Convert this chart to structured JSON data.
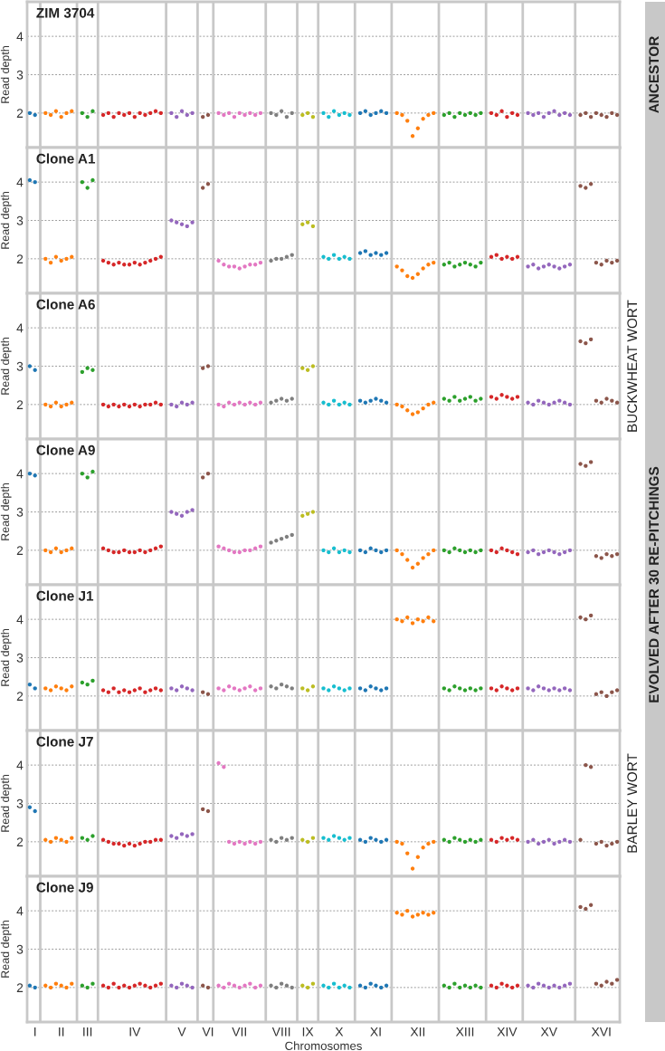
{
  "chart_data": [
    {
      "type": "scatter",
      "title": "ZIM 3704",
      "ylabel": "Read depth",
      "marker": "circle",
      "grid": true,
      "tick_labels": "y",
      "annotations": [
        "ANCESTOR"
      ],
      "ylim": [
        1.1,
        4.9
      ],
      "yticks": [
        2,
        3,
        4
      ],
      "categories": [
        null,
        null,
        null,
        null,
        null,
        null,
        null,
        null,
        null,
        null,
        null,
        null,
        null,
        null,
        null,
        null,
        null,
        null,
        null,
        null,
        null,
        null,
        null,
        null,
        null,
        null,
        null,
        null,
        null,
        null,
        null,
        null,
        null,
        null,
        null,
        null,
        null,
        null,
        null,
        null,
        null,
        null,
        null,
        null,
        null,
        null,
        null,
        null,
        null,
        null,
        null,
        null,
        null,
        null,
        null,
        null,
        null,
        null,
        null,
        null,
        null,
        null,
        null,
        null,
        null,
        null,
        null,
        null,
        null,
        null,
        null,
        null,
        null,
        null,
        null,
        null,
        null,
        null,
        null,
        null,
        null,
        null,
        null,
        null,
        null,
        null,
        null,
        null,
        null,
        null,
        null,
        null,
        null,
        null,
        null,
        null,
        null,
        null,
        null,
        null,
        null,
        null,
        null,
        null,
        null,
        null,
        null,
        null,
        null,
        null,
        null,
        null,
        null
      ],
      "colors": [
        "#1f77b4",
        "#1f77b4",
        null,
        "#ff7f0e",
        "#ff7f0e",
        "#ff7f0e",
        "#ff7f0e",
        "#ff7f0e",
        "#ff7f0e",
        null,
        "#2ca02c",
        "#2ca02c",
        "#2ca02c",
        null,
        "#d62728",
        "#d62728",
        "#d62728",
        "#d62728",
        "#d62728",
        "#d62728",
        "#d62728",
        "#d62728",
        "#d62728",
        "#d62728",
        "#d62728",
        "#d62728",
        null,
        "#9467bd",
        "#9467bd",
        "#9467bd",
        "#9467bd",
        "#9467bd",
        null,
        "#8c564b",
        "#8c564b",
        null,
        "#e377c2",
        "#e377c2",
        "#e377c2",
        "#e377c2",
        "#e377c2",
        "#e377c2",
        "#e377c2",
        "#e377c2",
        "#e377c2",
        null,
        "#7f7f7f",
        "#7f7f7f",
        "#7f7f7f",
        "#7f7f7f",
        "#7f7f7f",
        null,
        "#bcbd22",
        "#bcbd22",
        "#bcbd22",
        null,
        "#17becf",
        "#17becf",
        "#17becf",
        "#17becf",
        "#17becf",
        "#17becf",
        null,
        "#1f77b4",
        "#1f77b4",
        "#1f77b4",
        "#1f77b4",
        "#1f77b4",
        "#1f77b4",
        null,
        "#ff7f0e",
        "#ff7f0e",
        "#ff7f0e",
        "#ff7f0e",
        "#ff7f0e",
        "#ff7f0e",
        "#ff7f0e",
        "#ff7f0e",
        null,
        "#2ca02c",
        "#2ca02c",
        "#2ca02c",
        "#2ca02c",
        "#2ca02c",
        "#2ca02c",
        "#2ca02c",
        "#2ca02c",
        null,
        "#d62728",
        "#d62728",
        "#d62728",
        "#d62728",
        "#d62728",
        "#d62728",
        null,
        "#9467bd",
        "#9467bd",
        "#9467bd",
        "#9467bd",
        "#9467bd",
        "#9467bd",
        "#9467bd",
        "#9467bd",
        "#9467bd",
        null,
        "#8c564b",
        "#8c564b",
        "#8c564b",
        "#8c564b",
        "#8c564b",
        "#8c564b",
        "#8c564b",
        "#8c564b"
      ],
      "values": [
        2.0,
        1.95,
        null,
        2.0,
        1.95,
        2.05,
        1.9,
        2.0,
        2.05,
        null,
        2.0,
        1.9,
        2.05,
        null,
        1.95,
        2.0,
        1.9,
        2.0,
        1.95,
        2.0,
        1.9,
        2.0,
        1.95,
        2.0,
        2.05,
        2.0,
        null,
        2.0,
        1.9,
        2.05,
        1.95,
        2.0,
        null,
        1.9,
        1.95,
        null,
        2.0,
        1.95,
        2.0,
        1.9,
        2.0,
        1.95,
        2.0,
        1.95,
        2.0,
        null,
        2.0,
        1.95,
        2.05,
        1.9,
        2.0,
        null,
        1.95,
        2.0,
        1.9,
        null,
        2.0,
        1.9,
        2.05,
        1.95,
        2.0,
        1.95,
        null,
        2.0,
        2.05,
        1.95,
        2.0,
        2.05,
        2.0,
        null,
        2.0,
        1.95,
        1.8,
        1.4,
        1.6,
        1.85,
        1.95,
        2.0,
        null,
        1.95,
        2.0,
        1.9,
        2.0,
        1.95,
        2.0,
        1.95,
        2.0,
        null,
        2.0,
        1.95,
        2.05,
        1.9,
        2.0,
        1.95,
        null,
        2.0,
        1.95,
        2.0,
        1.9,
        2.0,
        2.05,
        1.95,
        2.0,
        1.95,
        null,
        1.95,
        2.0,
        1.9,
        2.0,
        1.95,
        1.9,
        2.0,
        1.95
      ]
    },
    {
      "type": "scatter",
      "title": "Clone A1",
      "ylabel": "Read depth",
      "marker": "circle",
      "grid": true,
      "tick_labels": "y",
      "ylim": [
        1.1,
        4.9
      ],
      "yticks": [
        2,
        3,
        4
      ],
      "categories": [
        null,
        null,
        null,
        null,
        null,
        null,
        null,
        null,
        null,
        null,
        null,
        null,
        null,
        null,
        null,
        null,
        null,
        null,
        null,
        null,
        null,
        null,
        null,
        null,
        null,
        null,
        null,
        null,
        null,
        null,
        null,
        null,
        null,
        null,
        null,
        null,
        null,
        null,
        null,
        null,
        null,
        null,
        null,
        null,
        null,
        null,
        null,
        null,
        null,
        null,
        null,
        null,
        null,
        null,
        null,
        null,
        null,
        null,
        null,
        null,
        null,
        null,
        null,
        null,
        null,
        null,
        null,
        null,
        null,
        null,
        null,
        null,
        null,
        null,
        null,
        null,
        null,
        null,
        null,
        null,
        null,
        null,
        null,
        null,
        null,
        null,
        null,
        null,
        null,
        null,
        null,
        null,
        null,
        null,
        null,
        null,
        null,
        null,
        null,
        null,
        null,
        null,
        null,
        null,
        null,
        null,
        null,
        null,
        null,
        null,
        null,
        null,
        null
      ],
      "colors": [
        "#1f77b4",
        "#1f77b4",
        null,
        "#ff7f0e",
        "#ff7f0e",
        "#ff7f0e",
        "#ff7f0e",
        "#ff7f0e",
        "#ff7f0e",
        null,
        "#2ca02c",
        "#2ca02c",
        "#2ca02c",
        null,
        "#d62728",
        "#d62728",
        "#d62728",
        "#d62728",
        "#d62728",
        "#d62728",
        "#d62728",
        "#d62728",
        "#d62728",
        "#d62728",
        "#d62728",
        "#d62728",
        null,
        "#9467bd",
        "#9467bd",
        "#9467bd",
        "#9467bd",
        "#9467bd",
        null,
        "#8c564b",
        "#8c564b",
        null,
        "#e377c2",
        "#e377c2",
        "#e377c2",
        "#e377c2",
        "#e377c2",
        "#e377c2",
        "#e377c2",
        "#e377c2",
        "#e377c2",
        null,
        "#7f7f7f",
        "#7f7f7f",
        "#7f7f7f",
        "#7f7f7f",
        "#7f7f7f",
        null,
        "#bcbd22",
        "#bcbd22",
        "#bcbd22",
        null,
        "#17becf",
        "#17becf",
        "#17becf",
        "#17becf",
        "#17becf",
        "#17becf",
        null,
        "#1f77b4",
        "#1f77b4",
        "#1f77b4",
        "#1f77b4",
        "#1f77b4",
        "#1f77b4",
        null,
        "#ff7f0e",
        "#ff7f0e",
        "#ff7f0e",
        "#ff7f0e",
        "#ff7f0e",
        "#ff7f0e",
        "#ff7f0e",
        "#ff7f0e",
        null,
        "#2ca02c",
        "#2ca02c",
        "#2ca02c",
        "#2ca02c",
        "#2ca02c",
        "#2ca02c",
        "#2ca02c",
        "#2ca02c",
        null,
        "#d62728",
        "#d62728",
        "#d62728",
        "#d62728",
        "#d62728",
        "#d62728",
        null,
        "#9467bd",
        "#9467bd",
        "#9467bd",
        "#9467bd",
        "#9467bd",
        "#9467bd",
        "#9467bd",
        "#9467bd",
        "#9467bd",
        null,
        "#8c564b",
        "#8c564b",
        "#8c564b",
        "#8c564b",
        "#8c564b",
        "#8c564b",
        "#8c564b",
        "#8c564b"
      ],
      "values": [
        4.05,
        4.0,
        null,
        2.0,
        1.9,
        2.05,
        1.95,
        2.0,
        2.05,
        null,
        4.0,
        3.85,
        4.05,
        null,
        1.95,
        1.9,
        1.85,
        1.9,
        1.85,
        1.85,
        1.9,
        1.85,
        1.9,
        1.95,
        2.0,
        2.05,
        null,
        3.0,
        2.95,
        2.9,
        2.85,
        2.95,
        null,
        3.85,
        3.95,
        null,
        1.95,
        1.85,
        1.8,
        1.8,
        1.75,
        1.8,
        1.85,
        1.85,
        1.9,
        null,
        1.95,
        2.0,
        2.0,
        2.05,
        2.1,
        null,
        2.9,
        2.95,
        2.85,
        null,
        2.05,
        2.0,
        2.1,
        2.0,
        2.05,
        2.0,
        null,
        2.15,
        2.2,
        2.1,
        2.15,
        2.1,
        2.15,
        null,
        1.8,
        1.7,
        1.55,
        1.5,
        1.6,
        1.75,
        1.85,
        1.9,
        null,
        1.85,
        1.9,
        1.8,
        1.85,
        1.9,
        1.85,
        1.8,
        1.9,
        null,
        2.05,
        2.1,
        2.0,
        2.05,
        2.0,
        2.05,
        null,
        1.8,
        1.85,
        1.75,
        1.8,
        1.85,
        1.8,
        1.75,
        1.8,
        1.85,
        null,
        3.9,
        3.85,
        3.95,
        1.9,
        1.85,
        1.95,
        1.9,
        1.95
      ]
    },
    {
      "type": "scatter",
      "title": "Clone A6",
      "ylabel": "Read depth",
      "marker": "circle",
      "grid": true,
      "tick_labels": "y",
      "annotations": [
        "BUCKWHEAT WORT"
      ],
      "ylim": [
        1.1,
        4.9
      ],
      "yticks": [
        2,
        3,
        4
      ],
      "categories": [
        null,
        null,
        null,
        null,
        null,
        null,
        null,
        null,
        null,
        null,
        null,
        null,
        null,
        null,
        null,
        null,
        null,
        null,
        null,
        null,
        null,
        null,
        null,
        null,
        null,
        null,
        null,
        null,
        null,
        null,
        null,
        null,
        null,
        null,
        null,
        null,
        null,
        null,
        null,
        null,
        null,
        null,
        null,
        null,
        null,
        null,
        null,
        null,
        null,
        null,
        null,
        null,
        null,
        null,
        null,
        null,
        null,
        null,
        null,
        null,
        null,
        null,
        null,
        null,
        null,
        null,
        null,
        null,
        null,
        null,
        null,
        null,
        null,
        null,
        null,
        null,
        null,
        null,
        null,
        null,
        null,
        null,
        null,
        null,
        null,
        null,
        null,
        null,
        null,
        null,
        null,
        null,
        null,
        null,
        null,
        null,
        null,
        null,
        null,
        null,
        null,
        null,
        null,
        null,
        null,
        null,
        null,
        null,
        null,
        null,
        null,
        null,
        null
      ],
      "colors": [
        "#1f77b4",
        "#1f77b4",
        null,
        "#ff7f0e",
        "#ff7f0e",
        "#ff7f0e",
        "#ff7f0e",
        "#ff7f0e",
        "#ff7f0e",
        null,
        "#2ca02c",
        "#2ca02c",
        "#2ca02c",
        null,
        "#d62728",
        "#d62728",
        "#d62728",
        "#d62728",
        "#d62728",
        "#d62728",
        "#d62728",
        "#d62728",
        "#d62728",
        "#d62728",
        "#d62728",
        "#d62728",
        null,
        "#9467bd",
        "#9467bd",
        "#9467bd",
        "#9467bd",
        "#9467bd",
        null,
        "#8c564b",
        "#8c564b",
        null,
        "#e377c2",
        "#e377c2",
        "#e377c2",
        "#e377c2",
        "#e377c2",
        "#e377c2",
        "#e377c2",
        "#e377c2",
        "#e377c2",
        null,
        "#7f7f7f",
        "#7f7f7f",
        "#7f7f7f",
        "#7f7f7f",
        "#7f7f7f",
        null,
        "#bcbd22",
        "#bcbd22",
        "#bcbd22",
        null,
        "#17becf",
        "#17becf",
        "#17becf",
        "#17becf",
        "#17becf",
        "#17becf",
        null,
        "#1f77b4",
        "#1f77b4",
        "#1f77b4",
        "#1f77b4",
        "#1f77b4",
        "#1f77b4",
        null,
        "#ff7f0e",
        "#ff7f0e",
        "#ff7f0e",
        "#ff7f0e",
        "#ff7f0e",
        "#ff7f0e",
        "#ff7f0e",
        "#ff7f0e",
        null,
        "#2ca02c",
        "#2ca02c",
        "#2ca02c",
        "#2ca02c",
        "#2ca02c",
        "#2ca02c",
        "#2ca02c",
        "#2ca02c",
        null,
        "#d62728",
        "#d62728",
        "#d62728",
        "#d62728",
        "#d62728",
        "#d62728",
        null,
        "#9467bd",
        "#9467bd",
        "#9467bd",
        "#9467bd",
        "#9467bd",
        "#9467bd",
        "#9467bd",
        "#9467bd",
        "#9467bd",
        null,
        "#8c564b",
        "#8c564b",
        "#8c564b",
        "#8c564b",
        "#8c564b",
        "#8c564b",
        "#8c564b",
        "#8c564b"
      ],
      "values": [
        3.0,
        2.9,
        null,
        2.0,
        1.95,
        2.05,
        1.95,
        2.0,
        2.05,
        null,
        2.85,
        2.95,
        2.9,
        null,
        2.0,
        1.95,
        2.0,
        1.95,
        2.0,
        1.95,
        2.0,
        1.95,
        2.0,
        2.0,
        2.05,
        2.0,
        null,
        2.0,
        1.95,
        2.05,
        2.0,
        2.05,
        null,
        2.95,
        3.0,
        null,
        2.0,
        1.95,
        2.05,
        2.0,
        2.05,
        2.0,
        2.05,
        2.0,
        2.05,
        null,
        2.05,
        2.1,
        2.15,
        2.1,
        2.15,
        null,
        2.95,
        2.9,
        3.0,
        null,
        2.05,
        2.0,
        2.1,
        2.0,
        2.05,
        2.0,
        null,
        2.1,
        2.05,
        2.1,
        2.15,
        2.1,
        2.05,
        null,
        2.0,
        1.95,
        1.85,
        1.75,
        1.8,
        1.9,
        2.0,
        2.05,
        null,
        2.15,
        2.1,
        2.2,
        2.1,
        2.15,
        2.2,
        2.1,
        2.15,
        null,
        2.2,
        2.15,
        2.25,
        2.2,
        2.15,
        2.2,
        null,
        2.05,
        2.0,
        2.1,
        2.05,
        2.0,
        2.05,
        2.1,
        2.05,
        2.0,
        null,
        3.65,
        3.6,
        3.7,
        2.1,
        2.05,
        2.15,
        2.1,
        2.05
      ]
    },
    {
      "type": "scatter",
      "title": "Clone A9",
      "ylabel": "Read depth",
      "marker": "circle",
      "grid": true,
      "tick_labels": "y",
      "annotations": [
        "EVOLVED AFTER 30 RE-PITCHINGS"
      ],
      "ylim": [
        1.1,
        4.9
      ],
      "yticks": [
        2,
        3,
        4
      ],
      "categories": [
        null,
        null,
        null,
        null,
        null,
        null,
        null,
        null,
        null,
        null,
        null,
        null,
        null,
        null,
        null,
        null,
        null,
        null,
        null,
        null,
        null,
        null,
        null,
        null,
        null,
        null,
        null,
        null,
        null,
        null,
        null,
        null,
        null,
        null,
        null,
        null,
        null,
        null,
        null,
        null,
        null,
        null,
        null,
        null,
        null,
        null,
        null,
        null,
        null,
        null,
        null,
        null,
        null,
        null,
        null,
        null,
        null,
        null,
        null,
        null,
        null,
        null,
        null,
        null,
        null,
        null,
        null,
        null,
        null,
        null,
        null,
        null,
        null,
        null,
        null,
        null,
        null,
        null,
        null,
        null,
        null,
        null,
        null,
        null,
        null,
        null,
        null,
        null,
        null,
        null,
        null,
        null,
        null,
        null,
        null,
        null,
        null,
        null,
        null,
        null,
        null,
        null,
        null,
        null,
        null,
        null,
        null,
        null,
        null,
        null,
        null,
        null,
        null
      ],
      "colors": [
        "#1f77b4",
        "#1f77b4",
        null,
        "#ff7f0e",
        "#ff7f0e",
        "#ff7f0e",
        "#ff7f0e",
        "#ff7f0e",
        "#ff7f0e",
        null,
        "#2ca02c",
        "#2ca02c",
        "#2ca02c",
        null,
        "#d62728",
        "#d62728",
        "#d62728",
        "#d62728",
        "#d62728",
        "#d62728",
        "#d62728",
        "#d62728",
        "#d62728",
        "#d62728",
        "#d62728",
        "#d62728",
        null,
        "#9467bd",
        "#9467bd",
        "#9467bd",
        "#9467bd",
        "#9467bd",
        null,
        "#8c564b",
        "#8c564b",
        null,
        "#e377c2",
        "#e377c2",
        "#e377c2",
        "#e377c2",
        "#e377c2",
        "#e377c2",
        "#e377c2",
        "#e377c2",
        "#e377c2",
        null,
        "#7f7f7f",
        "#7f7f7f",
        "#7f7f7f",
        "#7f7f7f",
        "#7f7f7f",
        null,
        "#bcbd22",
        "#bcbd22",
        "#bcbd22",
        null,
        "#17becf",
        "#17becf",
        "#17becf",
        "#17becf",
        "#17becf",
        "#17becf",
        null,
        "#1f77b4",
        "#1f77b4",
        "#1f77b4",
        "#1f77b4",
        "#1f77b4",
        "#1f77b4",
        null,
        "#ff7f0e",
        "#ff7f0e",
        "#ff7f0e",
        "#ff7f0e",
        "#ff7f0e",
        "#ff7f0e",
        "#ff7f0e",
        "#ff7f0e",
        null,
        "#2ca02c",
        "#2ca02c",
        "#2ca02c",
        "#2ca02c",
        "#2ca02c",
        "#2ca02c",
        "#2ca02c",
        "#2ca02c",
        null,
        "#d62728",
        "#d62728",
        "#d62728",
        "#d62728",
        "#d62728",
        "#d62728",
        null,
        "#9467bd",
        "#9467bd",
        "#9467bd",
        "#9467bd",
        "#9467bd",
        "#9467bd",
        "#9467bd",
        "#9467bd",
        "#9467bd",
        null,
        "#8c564b",
        "#8c564b",
        "#8c564b",
        "#8c564b",
        "#8c564b",
        "#8c564b",
        "#8c564b",
        "#8c564b"
      ],
      "values": [
        4.0,
        3.95,
        null,
        2.0,
        1.95,
        2.05,
        1.95,
        2.0,
        2.05,
        null,
        4.0,
        3.9,
        4.05,
        null,
        2.05,
        2.0,
        1.95,
        1.95,
        2.0,
        1.95,
        1.95,
        2.0,
        1.95,
        2.0,
        2.05,
        2.1,
        null,
        3.0,
        2.95,
        2.9,
        3.0,
        3.05,
        null,
        3.9,
        4.0,
        null,
        2.1,
        2.05,
        2.0,
        1.95,
        1.95,
        2.0,
        2.0,
        2.05,
        2.1,
        null,
        2.2,
        2.25,
        2.3,
        2.35,
        2.4,
        null,
        2.9,
        2.95,
        3.0,
        null,
        2.0,
        1.95,
        2.05,
        1.95,
        2.0,
        1.95,
        null,
        2.0,
        1.95,
        2.05,
        2.0,
        1.95,
        2.0,
        null,
        2.0,
        1.9,
        1.75,
        1.55,
        1.65,
        1.8,
        1.9,
        2.0,
        null,
        2.0,
        1.95,
        2.05,
        2.0,
        1.95,
        2.0,
        1.95,
        2.0,
        null,
        2.0,
        1.95,
        2.05,
        2.0,
        1.95,
        1.9,
        null,
        1.95,
        2.0,
        1.9,
        1.95,
        2.0,
        1.95,
        1.9,
        1.95,
        2.0,
        null,
        4.25,
        4.2,
        4.3,
        1.85,
        1.8,
        1.9,
        1.85,
        1.9
      ]
    },
    {
      "type": "scatter",
      "title": "Clone J1",
      "ylabel": "Read depth",
      "marker": "circle",
      "grid": true,
      "tick_labels": "y",
      "ylim": [
        1.1,
        4.9
      ],
      "yticks": [
        2,
        3,
        4
      ],
      "categories": [
        null,
        null,
        null,
        null,
        null,
        null,
        null,
        null,
        null,
        null,
        null,
        null,
        null,
        null,
        null,
        null,
        null,
        null,
        null,
        null,
        null,
        null,
        null,
        null,
        null,
        null,
        null,
        null,
        null,
        null,
        null,
        null,
        null,
        null,
        null,
        null,
        null,
        null,
        null,
        null,
        null,
        null,
        null,
        null,
        null,
        null,
        null,
        null,
        null,
        null,
        null,
        null,
        null,
        null,
        null,
        null,
        null,
        null,
        null,
        null,
        null,
        null,
        null,
        null,
        null,
        null,
        null,
        null,
        null,
        null,
        null,
        null,
        null,
        null,
        null,
        null,
        null,
        null,
        null,
        null,
        null,
        null,
        null,
        null,
        null,
        null,
        null,
        null,
        null,
        null,
        null,
        null,
        null,
        null,
        null,
        null,
        null,
        null,
        null,
        null,
        null,
        null,
        null,
        null,
        null,
        null,
        null,
        null,
        null,
        null,
        null,
        null,
        null
      ],
      "colors": [
        "#1f77b4",
        "#1f77b4",
        null,
        "#ff7f0e",
        "#ff7f0e",
        "#ff7f0e",
        "#ff7f0e",
        "#ff7f0e",
        "#ff7f0e",
        null,
        "#2ca02c",
        "#2ca02c",
        "#2ca02c",
        null,
        "#d62728",
        "#d62728",
        "#d62728",
        "#d62728",
        "#d62728",
        "#d62728",
        "#d62728",
        "#d62728",
        "#d62728",
        "#d62728",
        "#d62728",
        "#d62728",
        null,
        "#9467bd",
        "#9467bd",
        "#9467bd",
        "#9467bd",
        "#9467bd",
        null,
        "#8c564b",
        "#8c564b",
        null,
        "#e377c2",
        "#e377c2",
        "#e377c2",
        "#e377c2",
        "#e377c2",
        "#e377c2",
        "#e377c2",
        "#e377c2",
        "#e377c2",
        null,
        "#7f7f7f",
        "#7f7f7f",
        "#7f7f7f",
        "#7f7f7f",
        "#7f7f7f",
        null,
        "#bcbd22",
        "#bcbd22",
        "#bcbd22",
        null,
        "#17becf",
        "#17becf",
        "#17becf",
        "#17becf",
        "#17becf",
        "#17becf",
        null,
        "#1f77b4",
        "#1f77b4",
        "#1f77b4",
        "#1f77b4",
        "#1f77b4",
        "#1f77b4",
        null,
        "#ff7f0e",
        "#ff7f0e",
        "#ff7f0e",
        "#ff7f0e",
        "#ff7f0e",
        "#ff7f0e",
        "#ff7f0e",
        "#ff7f0e",
        null,
        "#2ca02c",
        "#2ca02c",
        "#2ca02c",
        "#2ca02c",
        "#2ca02c",
        "#2ca02c",
        "#2ca02c",
        "#2ca02c",
        null,
        "#d62728",
        "#d62728",
        "#d62728",
        "#d62728",
        "#d62728",
        "#d62728",
        null,
        "#9467bd",
        "#9467bd",
        "#9467bd",
        "#9467bd",
        "#9467bd",
        "#9467bd",
        "#9467bd",
        "#9467bd",
        "#9467bd",
        null,
        "#8c564b",
        "#8c564b",
        "#8c564b",
        "#8c564b",
        "#8c564b",
        "#8c564b",
        "#8c564b",
        "#8c564b"
      ],
      "values": [
        2.3,
        2.2,
        null,
        2.2,
        2.15,
        2.25,
        2.2,
        2.15,
        2.25,
        null,
        2.35,
        2.3,
        2.4,
        null,
        2.15,
        2.1,
        2.2,
        2.1,
        2.15,
        2.1,
        2.15,
        2.2,
        2.1,
        2.15,
        2.2,
        2.15,
        null,
        2.2,
        2.15,
        2.25,
        2.2,
        2.15,
        null,
        2.1,
        2.05,
        null,
        2.2,
        2.15,
        2.25,
        2.2,
        2.15,
        2.2,
        2.25,
        2.15,
        2.2,
        null,
        2.25,
        2.2,
        2.3,
        2.25,
        2.2,
        null,
        2.2,
        2.15,
        2.25,
        null,
        2.2,
        2.15,
        2.25,
        2.2,
        2.15,
        2.2,
        null,
        2.2,
        2.15,
        2.25,
        2.2,
        2.15,
        2.2,
        null,
        4.0,
        3.95,
        4.05,
        3.9,
        4.0,
        3.95,
        4.05,
        3.95,
        null,
        2.2,
        2.15,
        2.25,
        2.2,
        2.15,
        2.2,
        2.15,
        2.2,
        null,
        2.2,
        2.15,
        2.25,
        2.2,
        2.15,
        2.2,
        null,
        2.2,
        2.15,
        2.25,
        2.2,
        2.15,
        2.2,
        2.15,
        2.2,
        2.15,
        null,
        4.05,
        4.0,
        4.1,
        2.05,
        2.1,
        2.0,
        2.1,
        2.15
      ]
    },
    {
      "type": "scatter",
      "title": "Clone J7",
      "ylabel": "Read depth",
      "marker": "circle",
      "grid": true,
      "tick_labels": "y",
      "annotations": [
        "BARLEY WORT"
      ],
      "ylim": [
        1.1,
        4.9
      ],
      "yticks": [
        2,
        3,
        4
      ],
      "categories": [
        null,
        null,
        null,
        null,
        null,
        null,
        null,
        null,
        null,
        null,
        null,
        null,
        null,
        null,
        null,
        null,
        null,
        null,
        null,
        null,
        null,
        null,
        null,
        null,
        null,
        null,
        null,
        null,
        null,
        null,
        null,
        null,
        null,
        null,
        null,
        null,
        null,
        null,
        null,
        null,
        null,
        null,
        null,
        null,
        null,
        null,
        null,
        null,
        null,
        null,
        null,
        null,
        null,
        null,
        null,
        null,
        null,
        null,
        null,
        null,
        null,
        null,
        null,
        null,
        null,
        null,
        null,
        null,
        null,
        null,
        null,
        null,
        null,
        null,
        null,
        null,
        null,
        null,
        null,
        null,
        null,
        null,
        null,
        null,
        null,
        null,
        null,
        null,
        null,
        null,
        null,
        null,
        null,
        null,
        null,
        null,
        null,
        null,
        null,
        null,
        null,
        null,
        null,
        null,
        null,
        null,
        null,
        null,
        null,
        null,
        null,
        null,
        null
      ],
      "colors": [
        "#1f77b4",
        "#1f77b4",
        null,
        "#ff7f0e",
        "#ff7f0e",
        "#ff7f0e",
        "#ff7f0e",
        "#ff7f0e",
        "#ff7f0e",
        null,
        "#2ca02c",
        "#2ca02c",
        "#2ca02c",
        null,
        "#d62728",
        "#d62728",
        "#d62728",
        "#d62728",
        "#d62728",
        "#d62728",
        "#d62728",
        "#d62728",
        "#d62728",
        "#d62728",
        "#d62728",
        "#d62728",
        null,
        "#9467bd",
        "#9467bd",
        "#9467bd",
        "#9467bd",
        "#9467bd",
        null,
        "#8c564b",
        "#8c564b",
        null,
        "#e377c2",
        "#e377c2",
        "#e377c2",
        "#e377c2",
        "#e377c2",
        "#e377c2",
        "#e377c2",
        "#e377c2",
        "#e377c2",
        null,
        "#7f7f7f",
        "#7f7f7f",
        "#7f7f7f",
        "#7f7f7f",
        "#7f7f7f",
        null,
        "#bcbd22",
        "#bcbd22",
        "#bcbd22",
        null,
        "#17becf",
        "#17becf",
        "#17becf",
        "#17becf",
        "#17becf",
        "#17becf",
        null,
        "#1f77b4",
        "#1f77b4",
        "#1f77b4",
        "#1f77b4",
        "#1f77b4",
        "#1f77b4",
        null,
        "#ff7f0e",
        "#ff7f0e",
        "#ff7f0e",
        "#ff7f0e",
        "#ff7f0e",
        "#ff7f0e",
        "#ff7f0e",
        "#ff7f0e",
        null,
        "#2ca02c",
        "#2ca02c",
        "#2ca02c",
        "#2ca02c",
        "#2ca02c",
        "#2ca02c",
        "#2ca02c",
        "#2ca02c",
        null,
        "#d62728",
        "#d62728",
        "#d62728",
        "#d62728",
        "#d62728",
        "#d62728",
        null,
        "#9467bd",
        "#9467bd",
        "#9467bd",
        "#9467bd",
        "#9467bd",
        "#9467bd",
        "#9467bd",
        "#9467bd",
        "#9467bd",
        null,
        "#8c564b",
        "#8c564b",
        "#8c564b",
        "#8c564b",
        "#8c564b",
        "#8c564b",
        "#8c564b",
        "#8c564b"
      ],
      "values": [
        2.9,
        2.8,
        null,
        2.05,
        2.0,
        2.1,
        2.05,
        2.0,
        2.1,
        null,
        2.1,
        2.05,
        2.15,
        null,
        2.05,
        2.0,
        1.95,
        1.95,
        1.9,
        1.95,
        1.9,
        1.95,
        2.0,
        2.0,
        2.05,
        2.05,
        null,
        2.15,
        2.1,
        2.2,
        2.15,
        2.2,
        null,
        2.85,
        2.8,
        null,
        4.05,
        3.95,
        2.0,
        1.95,
        2.0,
        1.95,
        2.0,
        1.95,
        2.0,
        null,
        2.05,
        2.0,
        2.1,
        2.05,
        2.1,
        null,
        2.05,
        2.0,
        2.1,
        null,
        2.1,
        2.05,
        2.15,
        2.1,
        2.05,
        2.1,
        null,
        2.05,
        2.0,
        2.1,
        2.05,
        2.0,
        2.05,
        null,
        2.0,
        1.95,
        1.7,
        1.3,
        1.6,
        1.85,
        1.95,
        2.0,
        null,
        2.05,
        2.0,
        2.1,
        2.05,
        2.0,
        2.05,
        2.0,
        2.05,
        null,
        2.05,
        2.0,
        2.1,
        2.05,
        2.1,
        2.05,
        null,
        2.0,
        2.05,
        1.95,
        2.0,
        2.05,
        1.95,
        2.0,
        2.05,
        2.0,
        null,
        2.05,
        4.0,
        3.95,
        1.95,
        2.0,
        1.9,
        1.95,
        2.0
      ]
    },
    {
      "type": "scatter",
      "title": "Clone J9",
      "ylabel": "Read depth",
      "xlabel": "Chromosomes",
      "marker": "circle",
      "grid": true,
      "ylim": [
        1.1,
        4.9
      ],
      "yticks": [
        2,
        3,
        4
      ],
      "categories": [
        null,
        "I",
        null,
        null,
        null,
        null,
        "II",
        null,
        null,
        null,
        null,
        "III",
        null,
        null,
        null,
        null,
        null,
        null,
        null,
        null,
        "IV",
        null,
        null,
        null,
        null,
        null,
        null,
        null,
        null,
        "V",
        null,
        null,
        null,
        null,
        "VI",
        null,
        null,
        null,
        null,
        null,
        "VII",
        null,
        null,
        null,
        null,
        null,
        null,
        null,
        "VIII",
        null,
        null,
        null,
        null,
        "IX",
        null,
        null,
        null,
        null,
        null,
        "X",
        null,
        null,
        null,
        null,
        null,
        null,
        "XI",
        null,
        null,
        null,
        null,
        null,
        null,
        null,
        "XII",
        null,
        null,
        null,
        null,
        null,
        null,
        null,
        null,
        "XIII",
        null,
        null,
        null,
        null,
        null,
        null,
        null,
        "XIV",
        null,
        null,
        null,
        null,
        null,
        null,
        null,
        "XV",
        null,
        null,
        null,
        null,
        null,
        null,
        null,
        null,
        null,
        "XVI",
        null,
        null,
        null
      ],
      "colors": [
        "#1f77b4",
        "#1f77b4",
        null,
        "#ff7f0e",
        "#ff7f0e",
        "#ff7f0e",
        "#ff7f0e",
        "#ff7f0e",
        "#ff7f0e",
        null,
        "#2ca02c",
        "#2ca02c",
        "#2ca02c",
        null,
        "#d62728",
        "#d62728",
        "#d62728",
        "#d62728",
        "#d62728",
        "#d62728",
        "#d62728",
        "#d62728",
        "#d62728",
        "#d62728",
        "#d62728",
        "#d62728",
        null,
        "#9467bd",
        "#9467bd",
        "#9467bd",
        "#9467bd",
        "#9467bd",
        null,
        "#8c564b",
        "#8c564b",
        null,
        "#e377c2",
        "#e377c2",
        "#e377c2",
        "#e377c2",
        "#e377c2",
        "#e377c2",
        "#e377c2",
        "#e377c2",
        "#e377c2",
        null,
        "#7f7f7f",
        "#7f7f7f",
        "#7f7f7f",
        "#7f7f7f",
        "#7f7f7f",
        null,
        "#bcbd22",
        "#bcbd22",
        "#bcbd22",
        null,
        "#17becf",
        "#17becf",
        "#17becf",
        "#17becf",
        "#17becf",
        "#17becf",
        null,
        "#1f77b4",
        "#1f77b4",
        "#1f77b4",
        "#1f77b4",
        "#1f77b4",
        "#1f77b4",
        null,
        "#ff7f0e",
        "#ff7f0e",
        "#ff7f0e",
        "#ff7f0e",
        "#ff7f0e",
        "#ff7f0e",
        "#ff7f0e",
        "#ff7f0e",
        null,
        "#2ca02c",
        "#2ca02c",
        "#2ca02c",
        "#2ca02c",
        "#2ca02c",
        "#2ca02c",
        "#2ca02c",
        "#2ca02c",
        null,
        "#d62728",
        "#d62728",
        "#d62728",
        "#d62728",
        "#d62728",
        "#d62728",
        null,
        "#9467bd",
        "#9467bd",
        "#9467bd",
        "#9467bd",
        "#9467bd",
        "#9467bd",
        "#9467bd",
        "#9467bd",
        "#9467bd",
        null,
        "#8c564b",
        "#8c564b",
        "#8c564b",
        "#8c564b",
        "#8c564b",
        "#8c564b",
        "#8c564b",
        "#8c564b"
      ],
      "values": [
        2.05,
        2.0,
        null,
        2.05,
        2.0,
        2.1,
        2.05,
        2.0,
        2.1,
        null,
        2.05,
        2.0,
        2.1,
        null,
        2.05,
        2.0,
        2.1,
        2.0,
        2.05,
        2.0,
        2.05,
        2.1,
        2.05,
        2.0,
        2.05,
        2.1,
        null,
        2.05,
        2.0,
        2.1,
        2.05,
        2.0,
        null,
        2.05,
        2.0,
        null,
        2.05,
        2.0,
        2.1,
        2.05,
        2.0,
        2.05,
        2.1,
        2.0,
        2.05,
        null,
        2.05,
        2.0,
        2.1,
        2.05,
        2.0,
        null,
        2.05,
        2.0,
        2.1,
        null,
        2.05,
        2.0,
        2.1,
        2.0,
        2.05,
        2.0,
        null,
        2.05,
        2.0,
        2.1,
        2.05,
        2.0,
        2.05,
        null,
        3.95,
        3.9,
        4.0,
        3.85,
        3.9,
        3.95,
        3.9,
        3.95,
        null,
        2.05,
        2.0,
        2.1,
        2.0,
        2.05,
        2.0,
        2.05,
        2.0,
        null,
        2.05,
        2.0,
        2.1,
        2.05,
        2.0,
        2.05,
        null,
        2.05,
        2.0,
        2.1,
        2.05,
        2.0,
        2.05,
        2.0,
        2.05,
        2.1,
        null,
        4.1,
        4.05,
        4.15,
        2.1,
        2.05,
        2.15,
        2.1,
        2.2
      ]
    }
  ]
}
